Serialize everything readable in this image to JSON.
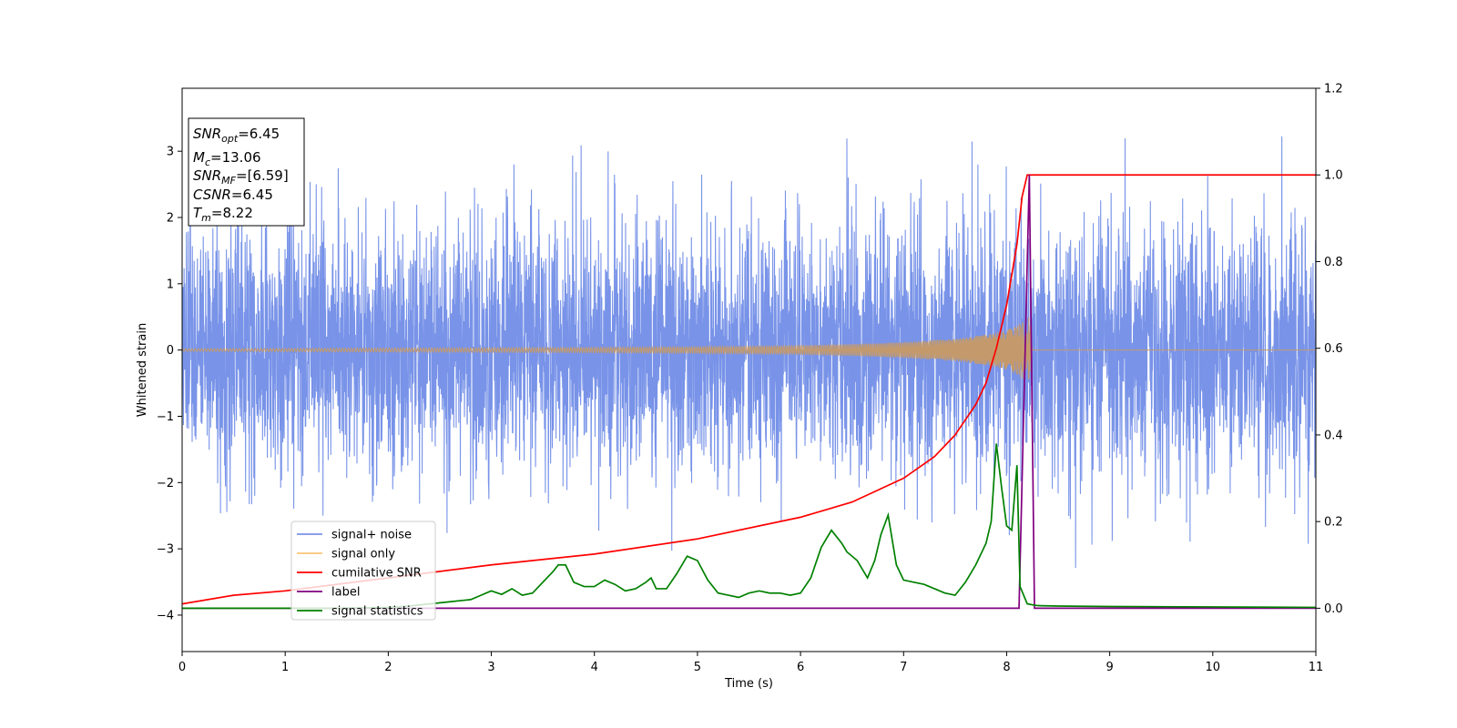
{
  "chart_data": {
    "type": "line",
    "title": "",
    "xlabel": "Time (s)",
    "ylabel": "Whitened strain",
    "y2label": "",
    "xlim": [
      0,
      11
    ],
    "ylim": [
      -4.55,
      3.95
    ],
    "y2lim": [
      -0.1,
      1.2
    ],
    "xticks": [
      0,
      1,
      2,
      3,
      4,
      5,
      6,
      7,
      8,
      9,
      10,
      11
    ],
    "yticks": [
      -4,
      -3,
      -2,
      -1,
      0,
      1,
      2,
      3
    ],
    "y2ticks": [
      0.0,
      0.2,
      0.4,
      0.6,
      0.8,
      1.0,
      1.2
    ],
    "grid": false,
    "legend_position": "lower-left",
    "annotation": [
      {
        "base": "SNR",
        "sub": "opt",
        "eq": "=6.45"
      },
      {
        "base": "M",
        "sub": "c",
        "eq": "=13.06"
      },
      {
        "base": "SNR",
        "sub": "MF",
        "eq": "=[6.59]"
      },
      {
        "base": "CSNR",
        "sub": "",
        "eq": "=6.45"
      },
      {
        "base": "T",
        "sub": "m",
        "eq": "=8.22"
      }
    ],
    "series": [
      {
        "name": "signal+ noise",
        "axis": "left",
        "color": "#7893e8",
        "noise_std": 0.95,
        "observed_range": [
          -4.15,
          3.6
        ]
      },
      {
        "name": "signal only",
        "axis": "left",
        "color": "#f9c57a",
        "merger_time": 8.22,
        "envelope": {
          "t": [
            0,
            2,
            4,
            5,
            6,
            6.5,
            7,
            7.5,
            7.8,
            8.0,
            8.1,
            8.2,
            8.22,
            8.25
          ],
          "amp": [
            0.02,
            0.03,
            0.04,
            0.05,
            0.07,
            0.09,
            0.12,
            0.17,
            0.23,
            0.3,
            0.38,
            0.48,
            0.5,
            0.0
          ]
        }
      },
      {
        "name": "cumilative SNR",
        "axis": "right",
        "color": "#ff0000",
        "x": [
          0,
          0.5,
          1,
          2,
          3,
          4,
          5,
          6,
          6.5,
          7,
          7.3,
          7.5,
          7.7,
          7.8,
          7.9,
          8.0,
          8.05,
          8.1,
          8.15,
          8.2,
          8.22,
          8.25,
          11
        ],
        "y": [
          0.01,
          0.03,
          0.04,
          0.07,
          0.1,
          0.125,
          0.16,
          0.21,
          0.245,
          0.3,
          0.35,
          0.4,
          0.47,
          0.52,
          0.6,
          0.7,
          0.77,
          0.84,
          0.95,
          1.0,
          1.0,
          1.0,
          1.0
        ]
      },
      {
        "name": "label",
        "axis": "right",
        "color": "#800080",
        "x": [
          0,
          8.12,
          8.22,
          8.27,
          11
        ],
        "y": [
          0,
          0,
          1.0,
          0,
          0
        ]
      },
      {
        "name": "signal statistics",
        "axis": "right",
        "color": "#008000",
        "x": [
          0,
          0.5,
          1.0,
          1.5,
          2.0,
          2.2,
          2.4,
          2.6,
          2.8,
          2.9,
          2.95,
          3.0,
          3.1,
          3.2,
          3.3,
          3.4,
          3.5,
          3.6,
          3.65,
          3.72,
          3.8,
          3.9,
          4.0,
          4.1,
          4.2,
          4.3,
          4.4,
          4.5,
          4.55,
          4.6,
          4.7,
          4.8,
          4.9,
          5.0,
          5.1,
          5.2,
          5.3,
          5.4,
          5.5,
          5.6,
          5.7,
          5.8,
          5.9,
          6.0,
          6.1,
          6.2,
          6.3,
          6.4,
          6.45,
          6.55,
          6.65,
          6.72,
          6.78,
          6.85,
          6.93,
          7.0,
          7.1,
          7.2,
          7.3,
          7.4,
          7.5,
          7.6,
          7.7,
          7.8,
          7.85,
          7.9,
          7.95,
          8.0,
          8.05,
          8.1,
          8.13,
          8.2,
          8.3,
          8.5,
          9,
          10,
          11
        ],
        "y": [
          0.0,
          0.0,
          0.0,
          0.0,
          0.002,
          0.005,
          0.01,
          0.015,
          0.02,
          0.03,
          0.035,
          0.04,
          0.032,
          0.045,
          0.03,
          0.035,
          0.06,
          0.085,
          0.1,
          0.1,
          0.06,
          0.05,
          0.05,
          0.065,
          0.055,
          0.04,
          0.045,
          0.06,
          0.07,
          0.045,
          0.045,
          0.08,
          0.12,
          0.11,
          0.065,
          0.035,
          0.03,
          0.025,
          0.035,
          0.04,
          0.035,
          0.035,
          0.03,
          0.035,
          0.07,
          0.14,
          0.18,
          0.15,
          0.13,
          0.11,
          0.07,
          0.11,
          0.17,
          0.215,
          0.1,
          0.065,
          0.06,
          0.055,
          0.045,
          0.035,
          0.03,
          0.06,
          0.1,
          0.15,
          0.2,
          0.38,
          0.28,
          0.19,
          0.18,
          0.33,
          0.05,
          0.01,
          0.006,
          0.005,
          0.004,
          0.003,
          0.002
        ]
      }
    ]
  }
}
